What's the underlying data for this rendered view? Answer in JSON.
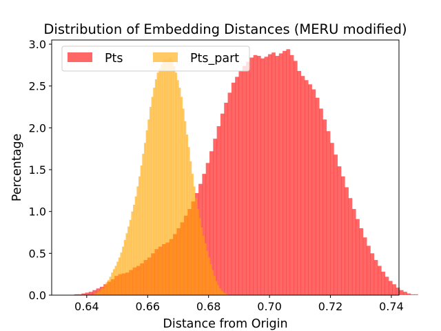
{
  "chart_data": {
    "type": "histogram",
    "title": "Distribution of Embedding Distances (MERU modified)",
    "xlabel": "Distance from Origin",
    "ylabel": "Percentage",
    "xlim": [
      0.6285,
      0.7425
    ],
    "ylim": [
      0,
      3.05
    ],
    "xticks": [
      "0.64",
      "0.66",
      "0.68",
      "0.70",
      "0.72",
      "0.74"
    ],
    "xtick_values": [
      0.64,
      0.66,
      0.68,
      0.7,
      0.72,
      0.74
    ],
    "yticks": [
      "0.0",
      "0.5",
      "1.0",
      "1.5",
      "2.0",
      "2.5",
      "3.0"
    ],
    "ytick_values": [
      0,
      0.5,
      1.0,
      1.5,
      2.0,
      2.5,
      3.0
    ],
    "grid": false,
    "legend_position": "top-left",
    "series": [
      {
        "name": "Pts",
        "color": "#ff0000",
        "alpha": 0.6,
        "bin_start": 0.6335,
        "bin_width": 0.0012,
        "values": [
          0.0,
          0.0,
          0.01,
          0.01,
          0.02,
          0.03,
          0.04,
          0.06,
          0.08,
          0.1,
          0.13,
          0.16,
          0.19,
          0.23,
          0.25,
          0.26,
          0.27,
          0.3,
          0.33,
          0.35,
          0.38,
          0.42,
          0.45,
          0.5,
          0.55,
          0.58,
          0.61,
          0.63,
          0.67,
          0.73,
          0.8,
          0.87,
          0.95,
          1.03,
          1.12,
          1.22,
          1.33,
          1.45,
          1.58,
          1.72,
          1.87,
          2.02,
          2.17,
          2.3,
          2.42,
          2.54,
          2.61,
          2.68,
          2.74,
          2.79,
          2.84,
          2.87,
          2.86,
          2.83,
          2.85,
          2.88,
          2.9,
          2.86,
          2.89,
          2.92,
          2.94,
          2.87,
          2.8,
          2.68,
          2.62,
          2.57,
          2.52,
          2.46,
          2.36,
          2.23,
          2.1,
          1.96,
          1.82,
          1.68,
          1.54,
          1.42,
          1.29,
          1.16,
          1.03,
          0.91,
          0.8,
          0.69,
          0.59,
          0.5,
          0.42,
          0.35,
          0.28,
          0.22,
          0.17,
          0.13,
          0.09,
          0.06,
          0.04,
          0.02,
          0.01,
          0.01,
          0.0
        ]
      },
      {
        "name": "Pts_part",
        "color": "#ffa500",
        "alpha": 0.6,
        "bin_start": 0.642,
        "bin_width": 0.0006,
        "values": [
          0.01,
          0.02,
          0.03,
          0.05,
          0.07,
          0.09,
          0.12,
          0.15,
          0.18,
          0.22,
          0.27,
          0.31,
          0.35,
          0.4,
          0.45,
          0.51,
          0.58,
          0.66,
          0.74,
          0.82,
          0.9,
          1.0,
          1.08,
          1.18,
          1.3,
          1.42,
          1.55,
          1.69,
          1.82,
          1.97,
          2.1,
          2.25,
          2.37,
          2.48,
          2.58,
          2.66,
          2.71,
          2.76,
          2.8,
          2.82,
          2.81,
          2.83,
          2.84,
          2.8,
          2.74,
          2.66,
          2.57,
          2.48,
          2.37,
          2.23,
          2.08,
          1.92,
          1.77,
          1.6,
          1.45,
          1.3,
          1.16,
          1.03,
          0.92,
          0.81,
          0.71,
          0.62,
          0.53,
          0.45,
          0.37,
          0.3,
          0.23,
          0.17,
          0.12,
          0.08,
          0.05,
          0.03,
          0.02,
          0.01,
          0.0
        ]
      }
    ]
  }
}
